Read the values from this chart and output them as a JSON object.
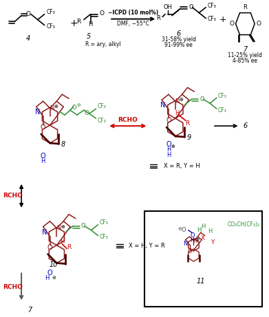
{
  "background_color": "#ffffff",
  "figsize": [
    3.91,
    4.61
  ],
  "dpi": 100,
  "black": "#000000",
  "dark_red": "#8B1A1A",
  "green": "#2E8B2E",
  "blue": "#0000BB",
  "red": "#CC0000",
  "gray": "#555555",
  "dark_gray": "#333333",
  "top_section": {
    "comp4_label": "4",
    "comp5_label": "5",
    "comp6_label": "6",
    "comp7_label": "7",
    "r_label": "R = ary, alkyl",
    "arrow_text1": "−ICPD (10 mol%)",
    "arrow_text2": "DMF, −55°C",
    "yield6": "31-58% yield",
    "ee6": "91-99% ee",
    "yield7": "11-25% yield",
    "ee7": "4-85% ee"
  },
  "mechanism": {
    "comp8": "8",
    "comp9": "9",
    "comp10": "10",
    "comp11": "11",
    "rcho": "RCHO",
    "eq1": "X = R, Y = H",
    "eq2": "X = H, Y = R",
    "co2_label": "CO₂CH(CF₃)₂"
  }
}
